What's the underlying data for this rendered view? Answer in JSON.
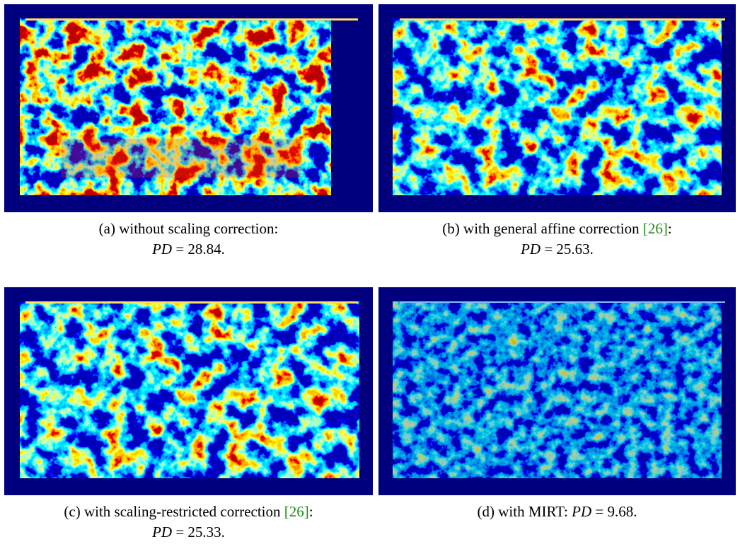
{
  "figure": {
    "panels": [
      {
        "caption": {
          "lines": [
            [
              {
                "text": "(a) without scaling correction:"
              }
            ],
            [
              {
                "text": "PD",
                "math": true
              },
              {
                "text": " = 28.84."
              }
            ]
          ]
        }
      },
      {
        "caption": {
          "lines": [
            [
              {
                "text": "(b) with general affine correction "
              },
              {
                "text": "[26]",
                "cite": true
              },
              {
                "text": ":"
              }
            ],
            [
              {
                "text": "PD",
                "math": true
              },
              {
                "text": " = 25.63."
              }
            ]
          ]
        }
      },
      {
        "caption": {
          "lines": [
            [
              {
                "text": "(c) with scaling-restricted correction "
              },
              {
                "text": "[26]",
                "cite": true
              },
              {
                "text": ":"
              }
            ],
            [
              {
                "text": "PD",
                "math": true
              },
              {
                "text": " = 25.33."
              }
            ]
          ]
        }
      },
      {
        "caption": {
          "lines": [
            [
              {
                "text": "(d) with MIRT: "
              },
              {
                "text": "PD",
                "math": true
              },
              {
                "text": " = 9.68."
              }
            ]
          ]
        }
      }
    ]
  }
}
